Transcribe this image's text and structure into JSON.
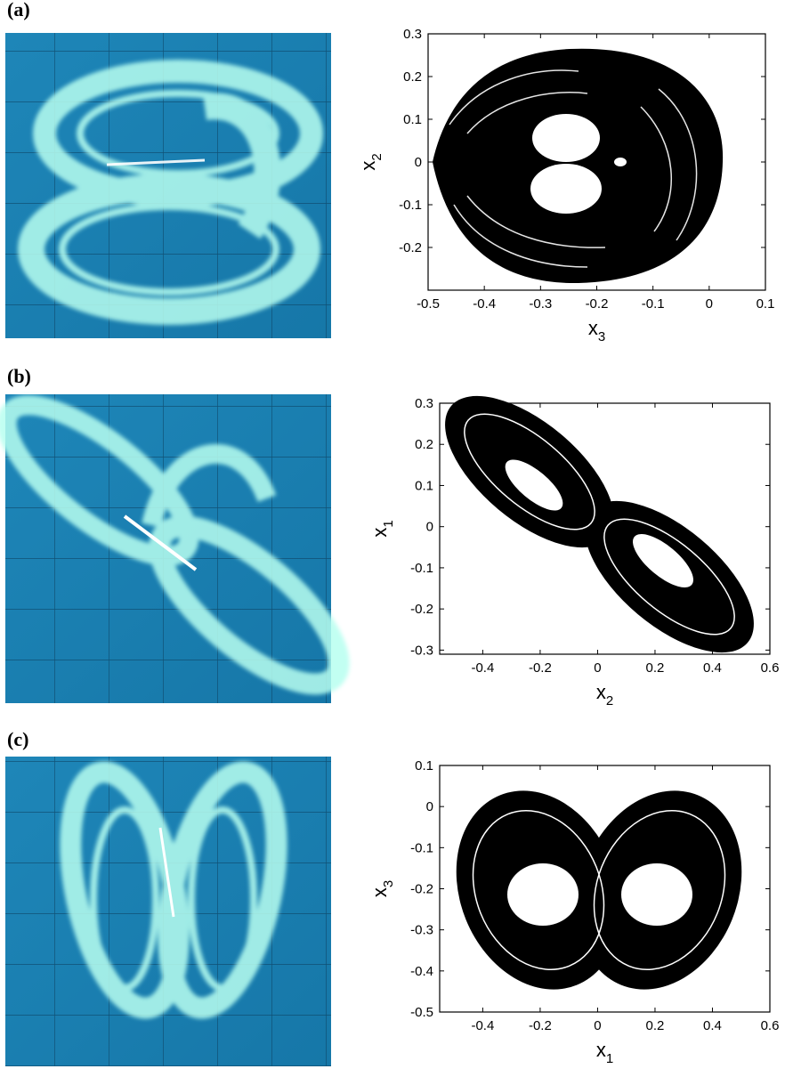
{
  "chart_data": [
    {
      "type": "line",
      "panel_label": "(a)",
      "xlim": [
        -0.5,
        0.1
      ],
      "xticks": [
        -0.5,
        -0.4,
        -0.3,
        -0.2,
        -0.1,
        0,
        0.1
      ],
      "ylim": [
        -0.3,
        0.3
      ],
      "yticks": [
        -0.2,
        -0.1,
        0,
        0.1,
        0.2,
        0.3
      ],
      "xlabel": {
        "symbol": "x",
        "subscript": "3"
      },
      "ylabel": {
        "symbol": "x",
        "subscript": "2"
      }
    },
    {
      "type": "line",
      "panel_label": "(b)",
      "xlim": [
        -0.55,
        0.6
      ],
      "xticks": [
        -0.4,
        -0.2,
        0,
        0.2,
        0.4,
        0.6
      ],
      "ylim": [
        -0.31,
        0.3
      ],
      "yticks": [
        -0.3,
        -0.2,
        -0.1,
        0,
        0.1,
        0.2,
        0.3
      ],
      "xlabel": {
        "symbol": "x",
        "subscript": "2"
      },
      "ylabel": {
        "symbol": "x",
        "subscript": "1"
      }
    },
    {
      "type": "line",
      "panel_label": "(c)",
      "xlim": [
        -0.55,
        0.6
      ],
      "xticks": [
        -0.4,
        -0.2,
        0,
        0.2,
        0.4,
        0.6
      ],
      "ylim": [
        -0.5,
        0.1
      ],
      "yticks": [
        -0.5,
        -0.4,
        -0.3,
        -0.2,
        -0.1,
        0,
        0.1
      ],
      "xlabel": {
        "symbol": "x",
        "subscript": "1"
      },
      "ylabel": {
        "symbol": "x",
        "subscript": "3"
      }
    }
  ]
}
